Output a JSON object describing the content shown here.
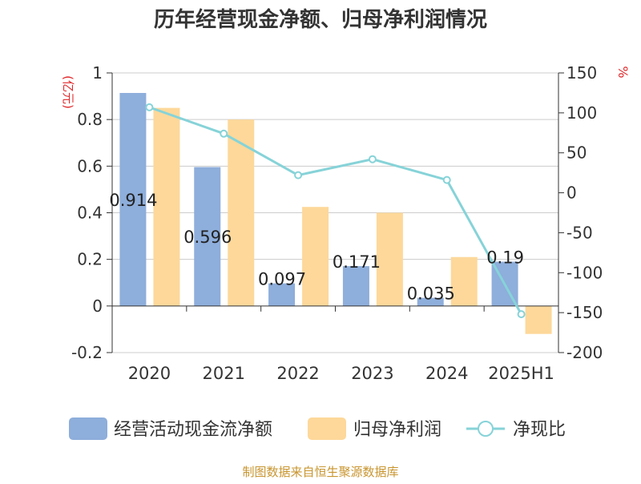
{
  "chart_data": {
    "type": "bar",
    "title": "历年经营现金净额、归母净利润情况",
    "categories": [
      "2020",
      "2021",
      "2022",
      "2023",
      "2024",
      "2025H1"
    ],
    "y_left": {
      "unit_label": "(亿元)",
      "min": -0.2,
      "max": 1,
      "ticks": [
        "-0.2",
        "0",
        "0.2",
        "0.4",
        "0.6",
        "0.8",
        "1"
      ]
    },
    "y_right": {
      "unit_label": "%",
      "min": -200,
      "max": 150,
      "ticks": [
        "-200",
        "-150",
        "-100",
        "-50",
        "0",
        "50",
        "100",
        "150"
      ]
    },
    "series": [
      {
        "name": "经营活动现金流净额",
        "type": "bar",
        "axis": "left",
        "color": "#8eaedb",
        "values": [
          0.914,
          0.596,
          0.097,
          0.171,
          0.035,
          0.19
        ],
        "labels": [
          "0.914",
          "0.596",
          "0.097",
          "0.171",
          "0.035",
          "0.19"
        ]
      },
      {
        "name": "归母净利润",
        "type": "bar",
        "axis": "left",
        "color": "#fdd89a",
        "values": [
          0.85,
          0.8,
          0.425,
          0.4,
          0.21,
          -0.12
        ]
      },
      {
        "name": "净现比",
        "type": "line",
        "axis": "right",
        "color": "#86d3d8",
        "values": [
          107,
          74,
          22,
          42,
          16,
          -152
        ]
      }
    ],
    "grid": true,
    "legend_position": "bottom",
    "gridline_color": "#cccccc"
  },
  "source_note": "制图数据来自恒生聚源数据库"
}
